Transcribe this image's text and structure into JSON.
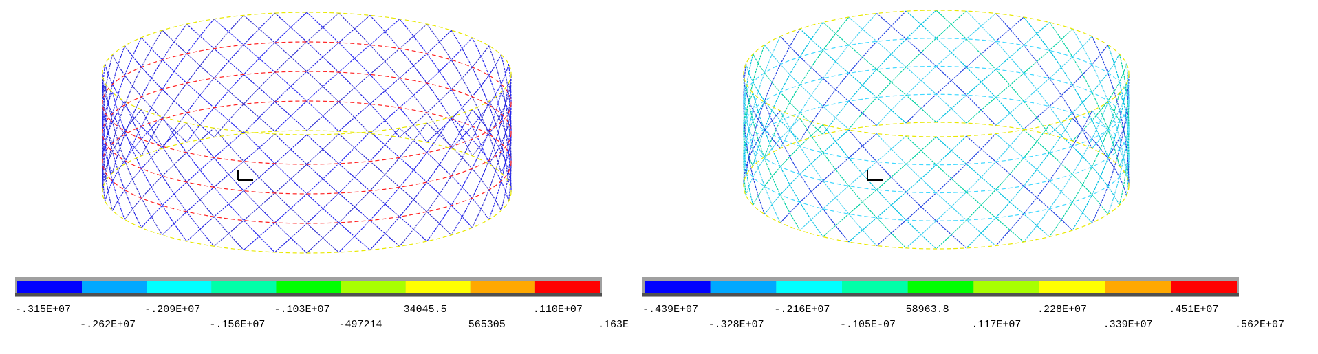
{
  "panels": [
    {
      "legend": {
        "colors": [
          "#0000ff",
          "#00a8ff",
          "#00ffff",
          "#00ffa8",
          "#00ff00",
          "#a8ff00",
          "#ffff00",
          "#ffa800",
          "#ff0000"
        ],
        "labels": [
          "-.315E+07",
          "-.262E+07",
          "-.209E+07",
          "-.156E+07",
          "-.103E+07",
          "-497214",
          "34045.5",
          "565305",
          ".110E+07",
          ".163E"
        ]
      }
    },
    {
      "legend": {
        "colors": [
          "#0000ff",
          "#00a8ff",
          "#00ffff",
          "#00ffa8",
          "#00ff00",
          "#a8ff00",
          "#ffff00",
          "#ffa800",
          "#ff0000"
        ],
        "labels": [
          "-.439E+07",
          "-.328E+07",
          "-.216E+07",
          "-.105E-07",
          "58963.8",
          ".117E+07",
          ".228E+07",
          ".339E+07",
          ".451E+07",
          ".562E+07"
        ]
      }
    }
  ]
}
